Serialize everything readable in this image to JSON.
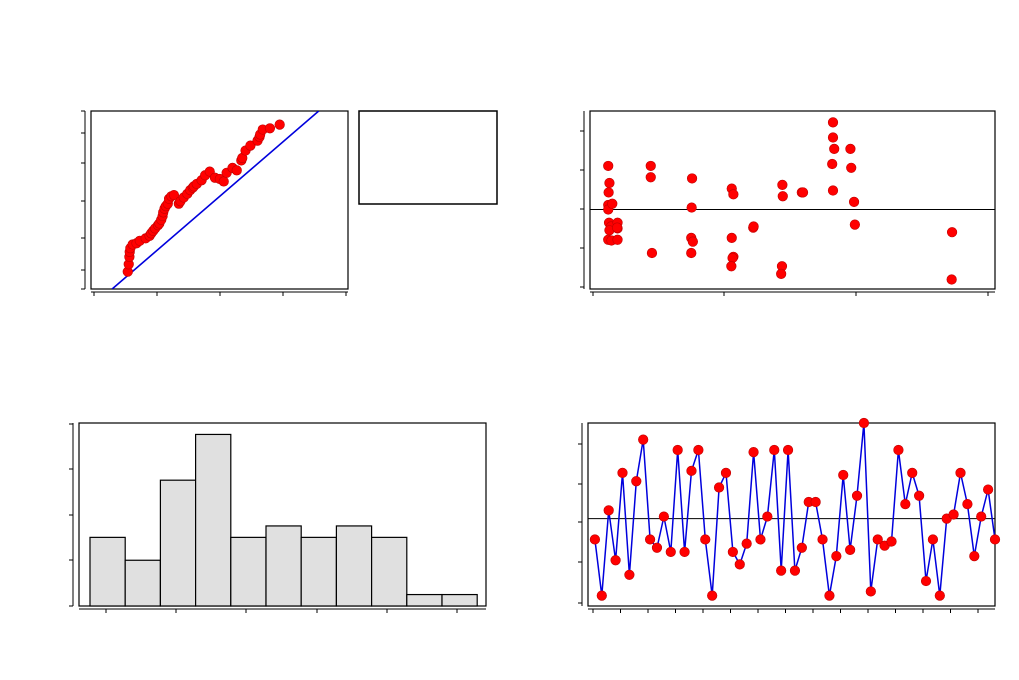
{
  "colors": {
    "point": "#ff0000",
    "point_edge": "#c00000",
    "line": "#0000dd",
    "bar_fill": "#e0e0e0",
    "bar_edge": "#000000",
    "frame": "#000000"
  },
  "chart_data": [
    {
      "id": "normal-probability-plot",
      "type": "scatter",
      "title": "",
      "xlabel": "",
      "ylabel": "",
      "xlim": [
        -3.6,
        4.3
      ],
      "ylim": [
        -3.4,
        3.8
      ],
      "grid": false,
      "series": [
        {
          "kind": "points",
          "x": [
            -2.47,
            -2.44,
            -2.42,
            -2.41,
            -2.39,
            -2.32,
            -2.2,
            -2.1,
            -1.92,
            -1.8,
            -1.75,
            -1.69,
            -1.63,
            -1.54,
            -1.5,
            -1.44,
            -1.4,
            -1.38,
            -1.34,
            -1.3,
            -1.24,
            -1.2,
            -1.13,
            -1.05,
            -0.9,
            -0.85,
            -0.75,
            -0.64,
            -0.55,
            -0.47,
            -0.44,
            -0.35,
            -0.2,
            -0.09,
            0.05,
            0.21,
            0.36,
            0.48,
            0.57,
            0.75,
            0.88,
            1.02,
            1.05,
            1.15,
            1.3,
            1.52,
            1.58,
            1.6,
            1.68,
            1.9,
            2.2
          ],
          "y": [
            -2.7,
            -2.4,
            -2.1,
            -1.9,
            -1.75,
            -1.6,
            -1.55,
            -1.45,
            -1.35,
            -1.25,
            -1.15,
            -1.05,
            -0.95,
            -0.82,
            -0.75,
            -0.6,
            -0.45,
            -0.3,
            -0.15,
            -0.05,
            0.05,
            0.25,
            0.35,
            0.4,
            0.05,
            0.15,
            0.3,
            0.45,
            0.6,
            0.7,
            0.75,
            0.85,
            1.0,
            1.2,
            1.35,
            1.1,
            1.05,
            0.95,
            1.3,
            1.5,
            1.4,
            1.8,
            1.9,
            2.2,
            2.4,
            2.6,
            2.75,
            2.85,
            3.05,
            3.1,
            3.25
          ]
        },
        {
          "kind": "fit-line",
          "x": [
            -2.95,
            3.4
          ],
          "y": [
            -3.4,
            3.8
          ]
        }
      ]
    },
    {
      "id": "residuals-vs-fitted",
      "type": "scatter",
      "title": "",
      "xlabel": "",
      "ylabel": "",
      "xlim": [
        0,
        100
      ],
      "ylim": [
        -2.1,
        2.6
      ],
      "grid": false,
      "reference_line": 0,
      "points": {
        "x": [
          4.5,
          4.8,
          4.6,
          4.5,
          4.5,
          4.7,
          5.2,
          4.8,
          4.5,
          5.3,
          5.5,
          6.8,
          6.8,
          6.7,
          6.8,
          15,
          15,
          15.3,
          25.2,
          25,
          25,
          25.4,
          25.1,
          35,
          35.4,
          35,
          35.4,
          35.2,
          34.9,
          40.3,
          40.4,
          47.5,
          47.6,
          47.4,
          47.2,
          52.5,
          52.3,
          52.6,
          60,
          60,
          60.3,
          59.8,
          60,
          64.3,
          64.5,
          65.2,
          65.4,
          89.4,
          89.3
        ],
        "y": [
          1.15,
          0.7,
          0.45,
          0.12,
          0.0,
          -0.35,
          -0.45,
          -0.55,
          -0.8,
          -0.82,
          0.15,
          -0.35,
          -0.5,
          -0.48,
          -0.8,
          1.15,
          0.85,
          -1.15,
          0.82,
          -1.15,
          -0.75,
          -0.85,
          0.05,
          0.55,
          0.4,
          -0.75,
          -1.25,
          -1.28,
          -1.5,
          -0.48,
          -0.45,
          0.65,
          0.35,
          -1.5,
          -1.7,
          0.45,
          0.45,
          0.45,
          2.3,
          1.9,
          1.6,
          1.2,
          0.5,
          1.6,
          1.1,
          0.2,
          -0.4,
          -0.6,
          -1.85
        ]
      }
    },
    {
      "id": "histogram",
      "type": "bar",
      "title": "",
      "xlabel": "",
      "ylabel": "",
      "ylim": [
        0,
        8
      ],
      "grid": false,
      "bins": 11,
      "values": [
        3,
        2,
        5.5,
        7.5,
        3,
        3.5,
        3,
        3.5,
        3,
        0.5,
        0.5
      ]
    },
    {
      "id": "residuals-vs-order",
      "type": "line",
      "title": "",
      "xlabel": "",
      "ylabel": "",
      "xlim": [
        0,
        59
      ],
      "ylim": [
        -2.1,
        2.3
      ],
      "grid": false,
      "reference_line": 0,
      "x": [
        1,
        2,
        3,
        4,
        5,
        6,
        7,
        8,
        9,
        10,
        11,
        12,
        13,
        14,
        15,
        16,
        17,
        18,
        19,
        20,
        21,
        22,
        23,
        24,
        25,
        26,
        27,
        28,
        29,
        30,
        31,
        32,
        33,
        34,
        35,
        36,
        37,
        38,
        39,
        40,
        41,
        42,
        43,
        44,
        45,
        46,
        47,
        48,
        49,
        50,
        51,
        52,
        53,
        54,
        55,
        56,
        57,
        58,
        59
      ],
      "y": [
        -0.5,
        -1.85,
        0.2,
        -1.0,
        1.1,
        -1.35,
        0.9,
        1.9,
        -0.5,
        -0.7,
        0.05,
        -0.8,
        1.65,
        -0.8,
        1.15,
        1.65,
        -0.5,
        -1.85,
        0.75,
        1.1,
        -0.8,
        -1.1,
        -0.6,
        1.6,
        -0.5,
        0.05,
        1.65,
        -1.25,
        1.65,
        -1.25,
        -0.7,
        0.4,
        0.4,
        -0.5,
        -1.85,
        -0.9,
        1.05,
        -0.75,
        0.55,
        2.3,
        -1.75,
        -0.5,
        -0.65,
        -0.55,
        1.65,
        0.35,
        1.1,
        0.55,
        -1.5,
        -0.5,
        -1.85,
        0.0,
        0.1,
        1.1,
        0.35,
        -0.9,
        0.05,
        0.7,
        -0.5
      ]
    }
  ]
}
